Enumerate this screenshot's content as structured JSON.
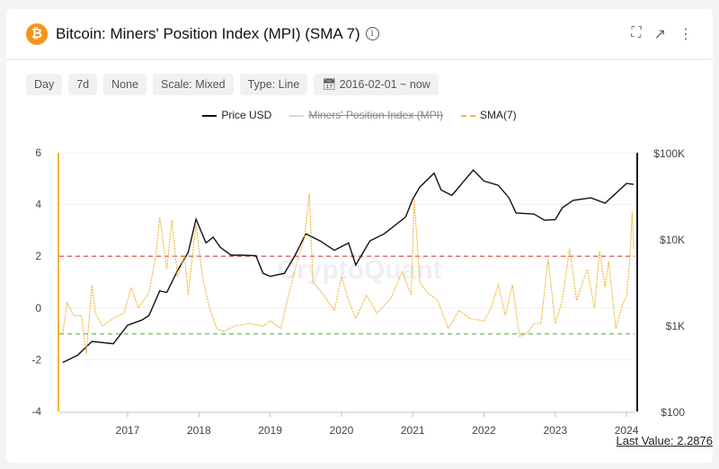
{
  "header": {
    "title": "Bitcoin: Miners' Position Index (MPI) (SMA 7)",
    "coin_icon": "bitcoin-icon",
    "info_icon": "info-icon",
    "actions": [
      "fullscreen-icon",
      "external-link-icon",
      "more-vertical-icon"
    ]
  },
  "toolbar": {
    "chips": [
      "Day",
      "7d",
      "None",
      "Scale: Mixed",
      "Type: Line"
    ],
    "date_range": "2016-02-01 ~ now"
  },
  "watermark": "CryptoQuant",
  "last_value": "Last Value: 2.2876",
  "chart_data": {
    "type": "line",
    "legend": [
      {
        "name": "Price USD",
        "color": "#111111",
        "hidden": false
      },
      {
        "name": "Miners' Position Index (MPI)",
        "color": "#d5d8dc",
        "hidden": true
      },
      {
        "name": "SMA(7)",
        "color": "#f2b53a",
        "hidden": false
      }
    ],
    "legend_placement": "top-center",
    "x_ticks": [
      "2017",
      "2018",
      "2019",
      "2020",
      "2021",
      "2022",
      "2023",
      "2024"
    ],
    "x_range": [
      2016.09,
      2024.1
    ],
    "y_left": {
      "ticks": [
        "6",
        "4",
        "2",
        "0",
        "-2",
        "-4"
      ],
      "range": [
        -4,
        6
      ]
    },
    "y_right": {
      "ticks": [
        "$100K",
        "$10K",
        "$1K",
        "$100"
      ],
      "range": [
        100,
        100000
      ],
      "scale": "log"
    },
    "thresholds": [
      {
        "value": 2,
        "color": "#e06060"
      },
      {
        "value": -1,
        "color": "#6cc05a"
      }
    ],
    "series": [
      {
        "name": "Price USD",
        "axis": "right",
        "color": "#111111",
        "points": [
          [
            2016.09,
            370
          ],
          [
            2016.3,
            450
          ],
          [
            2016.5,
            650
          ],
          [
            2016.8,
            610
          ],
          [
            2017.0,
            1000
          ],
          [
            2017.2,
            1150
          ],
          [
            2017.3,
            1300
          ],
          [
            2017.45,
            2500
          ],
          [
            2017.55,
            2400
          ],
          [
            2017.7,
            4300
          ],
          [
            2017.85,
            7000
          ],
          [
            2017.96,
            17000
          ],
          [
            2018.1,
            9000
          ],
          [
            2018.2,
            10500
          ],
          [
            2018.3,
            8000
          ],
          [
            2018.45,
            6500
          ],
          [
            2018.6,
            6500
          ],
          [
            2018.8,
            6400
          ],
          [
            2018.9,
            4000
          ],
          [
            2019.0,
            3700
          ],
          [
            2019.2,
            4000
          ],
          [
            2019.35,
            6500
          ],
          [
            2019.5,
            11500
          ],
          [
            2019.7,
            9500
          ],
          [
            2019.9,
            7400
          ],
          [
            2020.1,
            9000
          ],
          [
            2020.2,
            5000
          ],
          [
            2020.4,
            9500
          ],
          [
            2020.6,
            11500
          ],
          [
            2020.9,
            18000
          ],
          [
            2021.0,
            29000
          ],
          [
            2021.1,
            40000
          ],
          [
            2021.3,
            58000
          ],
          [
            2021.4,
            37000
          ],
          [
            2021.55,
            32000
          ],
          [
            2021.7,
            45000
          ],
          [
            2021.85,
            63000
          ],
          [
            2022.0,
            47000
          ],
          [
            2022.2,
            42000
          ],
          [
            2022.35,
            30000
          ],
          [
            2022.45,
            20000
          ],
          [
            2022.7,
            19500
          ],
          [
            2022.85,
            16500
          ],
          [
            2023.0,
            16800
          ],
          [
            2023.1,
            23000
          ],
          [
            2023.25,
            28000
          ],
          [
            2023.5,
            30000
          ],
          [
            2023.7,
            26000
          ],
          [
            2023.9,
            37000
          ],
          [
            2024.0,
            44000
          ],
          [
            2024.1,
            43000
          ]
        ]
      },
      {
        "name": "SMA(7)",
        "axis": "left",
        "color": "#f2b53a",
        "points": [
          [
            2016.09,
            -1.0
          ],
          [
            2016.15,
            0.2
          ],
          [
            2016.25,
            -0.3
          ],
          [
            2016.35,
            -0.3
          ],
          [
            2016.42,
            -1.8
          ],
          [
            2016.5,
            0.9
          ],
          [
            2016.55,
            -0.2
          ],
          [
            2016.65,
            -0.7
          ],
          [
            2016.8,
            -0.4
          ],
          [
            2016.95,
            -0.2
          ],
          [
            2017.05,
            0.8
          ],
          [
            2017.15,
            0.0
          ],
          [
            2017.3,
            0.6
          ],
          [
            2017.4,
            2.1
          ],
          [
            2017.45,
            3.5
          ],
          [
            2017.55,
            1.5
          ],
          [
            2017.62,
            3.4
          ],
          [
            2017.7,
            1.2
          ],
          [
            2017.8,
            2.0
          ],
          [
            2017.85,
            0.5
          ],
          [
            2017.96,
            3.2
          ],
          [
            2018.05,
            1.2
          ],
          [
            2018.15,
            0.0
          ],
          [
            2018.25,
            -0.8
          ],
          [
            2018.35,
            -0.9
          ],
          [
            2018.5,
            -0.7
          ],
          [
            2018.7,
            -0.6
          ],
          [
            2018.9,
            -0.7
          ],
          [
            2019.0,
            -0.5
          ],
          [
            2019.15,
            -0.8
          ],
          [
            2019.25,
            0.4
          ],
          [
            2019.35,
            1.5
          ],
          [
            2019.48,
            2.7
          ],
          [
            2019.55,
            4.4
          ],
          [
            2019.6,
            1.0
          ],
          [
            2019.75,
            0.5
          ],
          [
            2019.9,
            -0.1
          ],
          [
            2020.0,
            1.2
          ],
          [
            2020.1,
            0.3
          ],
          [
            2020.2,
            -0.4
          ],
          [
            2020.35,
            0.5
          ],
          [
            2020.5,
            -0.2
          ],
          [
            2020.7,
            0.4
          ],
          [
            2020.85,
            1.4
          ],
          [
            2020.98,
            0.5
          ],
          [
            2021.02,
            4.2
          ],
          [
            2021.1,
            1.0
          ],
          [
            2021.2,
            0.6
          ],
          [
            2021.35,
            0.3
          ],
          [
            2021.5,
            -0.8
          ],
          [
            2021.65,
            -0.1
          ],
          [
            2021.8,
            -0.4
          ],
          [
            2022.0,
            -0.5
          ],
          [
            2022.1,
            0.0
          ],
          [
            2022.2,
            0.9
          ],
          [
            2022.3,
            -0.3
          ],
          [
            2022.4,
            0.9
          ],
          [
            2022.5,
            -1.1
          ],
          [
            2022.6,
            -1.0
          ],
          [
            2022.7,
            -0.6
          ],
          [
            2022.8,
            -0.6
          ],
          [
            2022.9,
            1.9
          ],
          [
            2023.0,
            -0.6
          ],
          [
            2023.1,
            0.3
          ],
          [
            2023.2,
            2.3
          ],
          [
            2023.3,
            0.3
          ],
          [
            2023.45,
            1.5
          ],
          [
            2023.55,
            0.0
          ],
          [
            2023.62,
            2.2
          ],
          [
            2023.7,
            0.8
          ],
          [
            2023.75,
            1.8
          ],
          [
            2023.85,
            -0.8
          ],
          [
            2023.95,
            0.2
          ],
          [
            2024.0,
            0.4
          ],
          [
            2024.05,
            2.0
          ],
          [
            2024.08,
            3.7
          ],
          [
            2024.1,
            2.29
          ]
        ]
      }
    ]
  }
}
